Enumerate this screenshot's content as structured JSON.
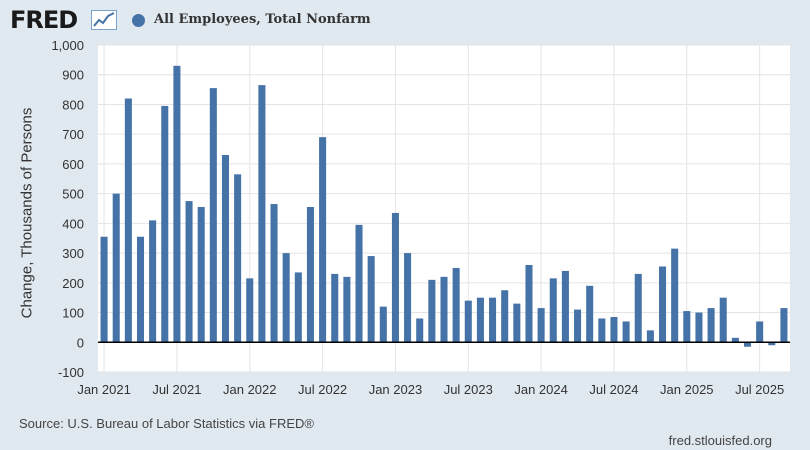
{
  "header": {
    "logo_text": "FRED",
    "logo_icon": "line-chart-icon",
    "series_title": "All Employees, Total Nonfarm",
    "series_color": "#4572a7"
  },
  "footer": {
    "source": "Source: U.S. Bureau of Labor Statistics via FRED®",
    "site": "fred.stlouisfed.org"
  },
  "chart_data": {
    "type": "bar",
    "title": "All Employees, Total Nonfarm",
    "ylabel": "Change, Thousands of Persons",
    "xlabel": "",
    "ylim": [
      -100,
      1000
    ],
    "grid": true,
    "legend_placement": "top-left",
    "yticks": [
      {
        "value": 1000,
        "label": "1,000"
      },
      {
        "value": 900,
        "label": "900"
      },
      {
        "value": 800,
        "label": "800"
      },
      {
        "value": 700,
        "label": "700"
      },
      {
        "value": 600,
        "label": "600"
      },
      {
        "value": 500,
        "label": "500"
      },
      {
        "value": 400,
        "label": "400"
      },
      {
        "value": 300,
        "label": "300"
      },
      {
        "value": 200,
        "label": "200"
      },
      {
        "value": 100,
        "label": "100"
      },
      {
        "value": 0,
        "label": "0"
      },
      {
        "value": -100,
        "label": "-100"
      }
    ],
    "xticks": [
      {
        "index": 0,
        "label": "Jan 2021"
      },
      {
        "index": 6,
        "label": "Jul 2021"
      },
      {
        "index": 12,
        "label": "Jan 2022"
      },
      {
        "index": 18,
        "label": "Jul 2022"
      },
      {
        "index": 24,
        "label": "Jan 2023"
      },
      {
        "index": 30,
        "label": "Jul 2023"
      },
      {
        "index": 36,
        "label": "Jan 2024"
      },
      {
        "index": 42,
        "label": "Jul 2024"
      },
      {
        "index": 48,
        "label": "Jan 2025"
      },
      {
        "index": 54,
        "label": "Jul 2025"
      }
    ],
    "categories": [
      "2021-01",
      "2021-02",
      "2021-03",
      "2021-04",
      "2021-05",
      "2021-06",
      "2021-07",
      "2021-08",
      "2021-09",
      "2021-10",
      "2021-11",
      "2021-12",
      "2022-01",
      "2022-02",
      "2022-03",
      "2022-04",
      "2022-05",
      "2022-06",
      "2022-07",
      "2022-08",
      "2022-09",
      "2022-10",
      "2022-11",
      "2022-12",
      "2023-01",
      "2023-02",
      "2023-03",
      "2023-04",
      "2023-05",
      "2023-06",
      "2023-07",
      "2023-08",
      "2023-09",
      "2023-10",
      "2023-11",
      "2023-12",
      "2024-01",
      "2024-02",
      "2024-03",
      "2024-04",
      "2024-05",
      "2024-06",
      "2024-07",
      "2024-08",
      "2024-09",
      "2024-10",
      "2024-11",
      "2024-12",
      "2025-01",
      "2025-02",
      "2025-03",
      "2025-04",
      "2025-05",
      "2025-06",
      "2025-07",
      "2025-08",
      "2025-09"
    ],
    "series": [
      {
        "name": "All Employees, Total Nonfarm",
        "color": "#4572a7",
        "values": [
          355,
          500,
          820,
          355,
          410,
          795,
          930,
          475,
          455,
          855,
          630,
          565,
          215,
          865,
          465,
          300,
          235,
          455,
          690,
          230,
          220,
          395,
          290,
          120,
          435,
          300,
          80,
          210,
          220,
          250,
          140,
          150,
          150,
          175,
          130,
          260,
          115,
          215,
          240,
          110,
          190,
          80,
          85,
          70,
          230,
          40,
          255,
          315,
          105,
          100,
          115,
          150,
          15,
          -15,
          70,
          -10,
          115
        ]
      }
    ]
  }
}
